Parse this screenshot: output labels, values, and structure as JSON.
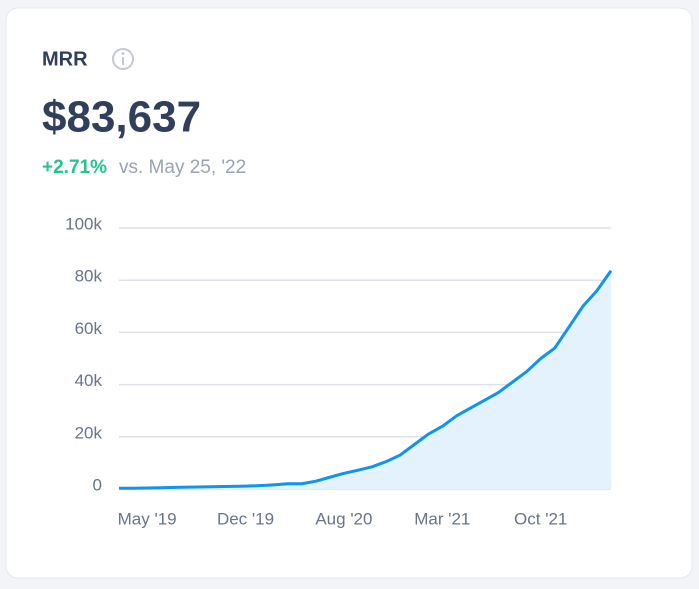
{
  "chart_data": {
    "type": "area",
    "title": "MRR",
    "headline": "$83,637",
    "change": "+2.71%",
    "comparison": "vs. May 25, '22",
    "categories": [
      null,
      null,
      "May '19",
      null,
      null,
      null,
      null,
      null,
      null,
      "Dec '19",
      null,
      null,
      null,
      null,
      null,
      null,
      "Aug '20",
      null,
      null,
      null,
      null,
      null,
      null,
      "Mar '21",
      null,
      null,
      null,
      null,
      null,
      null,
      "Oct '21",
      null,
      null,
      null,
      null,
      null
    ],
    "values": [
      300,
      300,
      400,
      500,
      600,
      700,
      800,
      900,
      1000,
      1100,
      1300,
      1600,
      2000,
      2000,
      3000,
      4500,
      6000,
      7200,
      8500,
      10500,
      13000,
      17000,
      21000,
      24000,
      28000,
      31000,
      34000,
      37000,
      41000,
      45000,
      50000,
      54000,
      62000,
      70000,
      76000,
      83637
    ],
    "color": "#1193f0",
    "fill": "#e3f2fd",
    "ylim": [
      0,
      100000
    ],
    "yticks": [
      {
        "value": 0,
        "label": "0"
      },
      {
        "value": 20000,
        "label": "20k"
      },
      {
        "value": 40000,
        "label": "40k"
      },
      {
        "value": 60000,
        "label": "60k"
      },
      {
        "value": 80000,
        "label": "80k"
      },
      {
        "value": 100000,
        "label": "100k"
      }
    ],
    "grid": true
  }
}
